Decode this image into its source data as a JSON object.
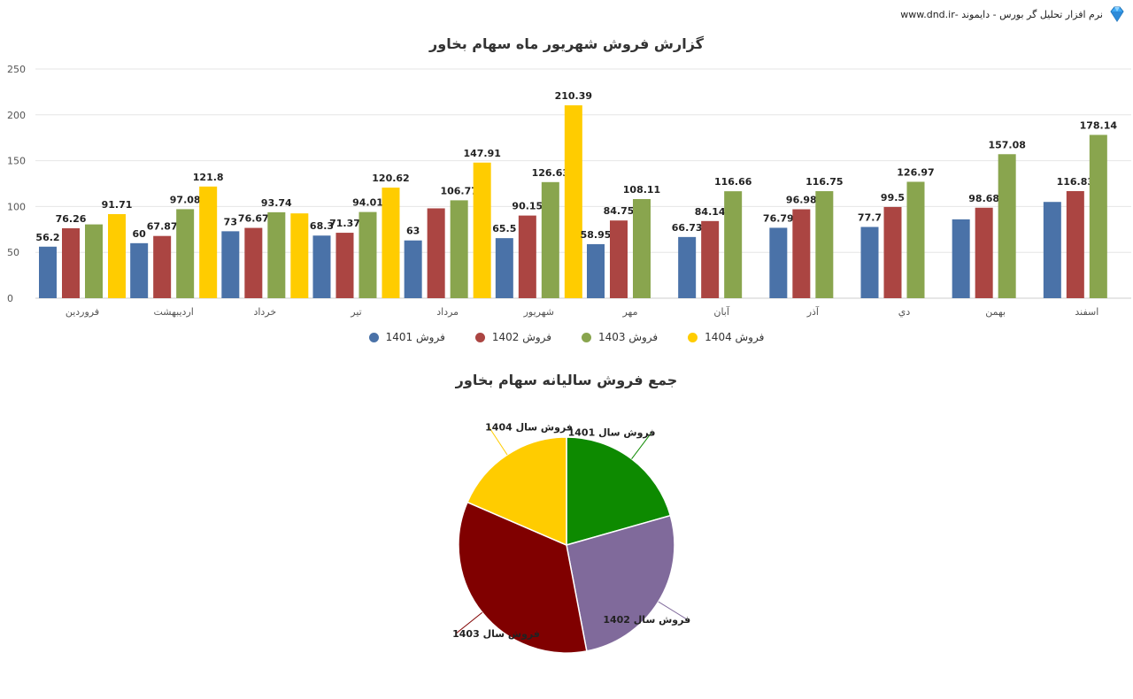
{
  "header": {
    "text": "نرم افزار تحلیل گر بورس - دایموند -www.dnd.ir"
  },
  "chart_data": [
    {
      "type": "bar",
      "title": "گزارش فروش شهریور ماه سهام بخاور",
      "categories": [
        "فروردین",
        "اردیبهشت",
        "خرداد",
        "تیر",
        "مرداد",
        "شهریور",
        "مهر",
        "آبان",
        "آذر",
        "دي",
        "بهمن",
        "اسفند"
      ],
      "ylim": [
        0,
        250
      ],
      "yticks": [
        0,
        50,
        100,
        150,
        200,
        250
      ],
      "grid": true,
      "legend_position": "bottom",
      "series": [
        {
          "name": "فروش 1401",
          "color": "#4a72a8",
          "values": [
            56.2,
            60,
            73,
            68.3,
            63,
            65.5,
            58.95,
            66.73,
            76.79,
            77.7,
            86,
            105
          ],
          "labels": [
            "56.2",
            "60",
            "73",
            "68.3",
            "63",
            "65.5",
            "58.95",
            "66.73",
            "76.79",
            "77.7",
            "",
            ""
          ]
        },
        {
          "name": "فروش 1402",
          "color": "#ab4542",
          "values": [
            76.26,
            67.87,
            76.67,
            71.37,
            98,
            90.15,
            84.75,
            84.14,
            96.98,
            99.5,
            98.68,
            116.83
          ],
          "labels": [
            "76.26",
            "67.87",
            "76.67",
            "71.37",
            "",
            "90.15",
            "84.75",
            "84.14",
            "96.98",
            "99.5",
            "98.68",
            "116.83"
          ]
        },
        {
          "name": "فروش 1403",
          "color": "#89a54e",
          "values": [
            80.5,
            97.08,
            93.74,
            94.01,
            106.77,
            126.63,
            108.11,
            116.66,
            116.75,
            126.97,
            157.08,
            178.14
          ],
          "labels": [
            "",
            "97.08",
            "93.74",
            "94.01",
            "106.77",
            "126.63",
            "108.11",
            "116.66",
            "116.75",
            "126.97",
            "157.08",
            "178.14"
          ]
        },
        {
          "name": "فروش 1404",
          "color": "#ffcc00",
          "values": [
            91.71,
            121.8,
            92.5,
            120.62,
            147.91,
            210.39,
            null,
            null,
            null,
            null,
            null,
            null
          ],
          "labels": [
            "91.71",
            "121.8",
            "",
            "120.62",
            "147.91",
            "210.39",
            "",
            "",
            "",
            "",
            "",
            ""
          ]
        }
      ]
    },
    {
      "type": "pie",
      "title": "جمع فروش سالیانه سهام بخاور",
      "slices": [
        {
          "name": "فروش سال 1401",
          "value": 20.6,
          "color": "#0d8a00"
        },
        {
          "name": "فروش سال 1402",
          "value": 26.4,
          "color": "#806a9b"
        },
        {
          "name": "فروش سال 1403",
          "value": 34.5,
          "color": "#800000"
        },
        {
          "name": "فروش سال 1404",
          "value": 18.5,
          "color": "#ffcc00"
        }
      ]
    }
  ]
}
